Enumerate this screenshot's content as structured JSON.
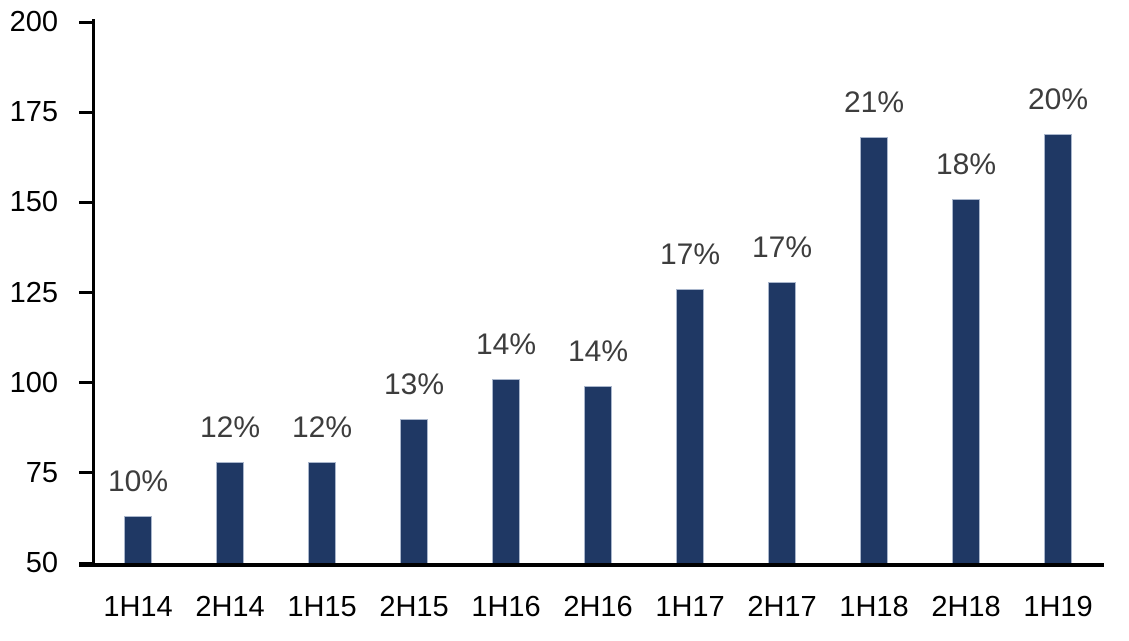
{
  "chart_data": {
    "type": "bar",
    "title": "",
    "xlabel": "",
    "ylabel": "",
    "categories": [
      "1H14",
      "2H14",
      "1H15",
      "2H15",
      "1H16",
      "2H16",
      "1H17",
      "2H17",
      "1H18",
      "2H18",
      "1H19"
    ],
    "values": [
      63,
      78,
      78,
      90,
      101,
      99,
      126,
      128,
      168,
      151,
      169
    ],
    "data_labels": [
      "10%",
      "12%",
      "12%",
      "13%",
      "14%",
      "14%",
      "17%",
      "17%",
      "21%",
      "18%",
      "20%"
    ],
    "ylim": [
      50,
      200
    ],
    "yticks": [
      200,
      175,
      150,
      125,
      100,
      75,
      50
    ],
    "grid": "off",
    "legend": "none",
    "colors": {
      "bar_fill": "#1F3864",
      "bar_border": "#A9B6CC",
      "data_label": "#3D3D3D",
      "axis": "#000000",
      "tick_label": "#000000",
      "background": "#FFFFFF"
    }
  }
}
